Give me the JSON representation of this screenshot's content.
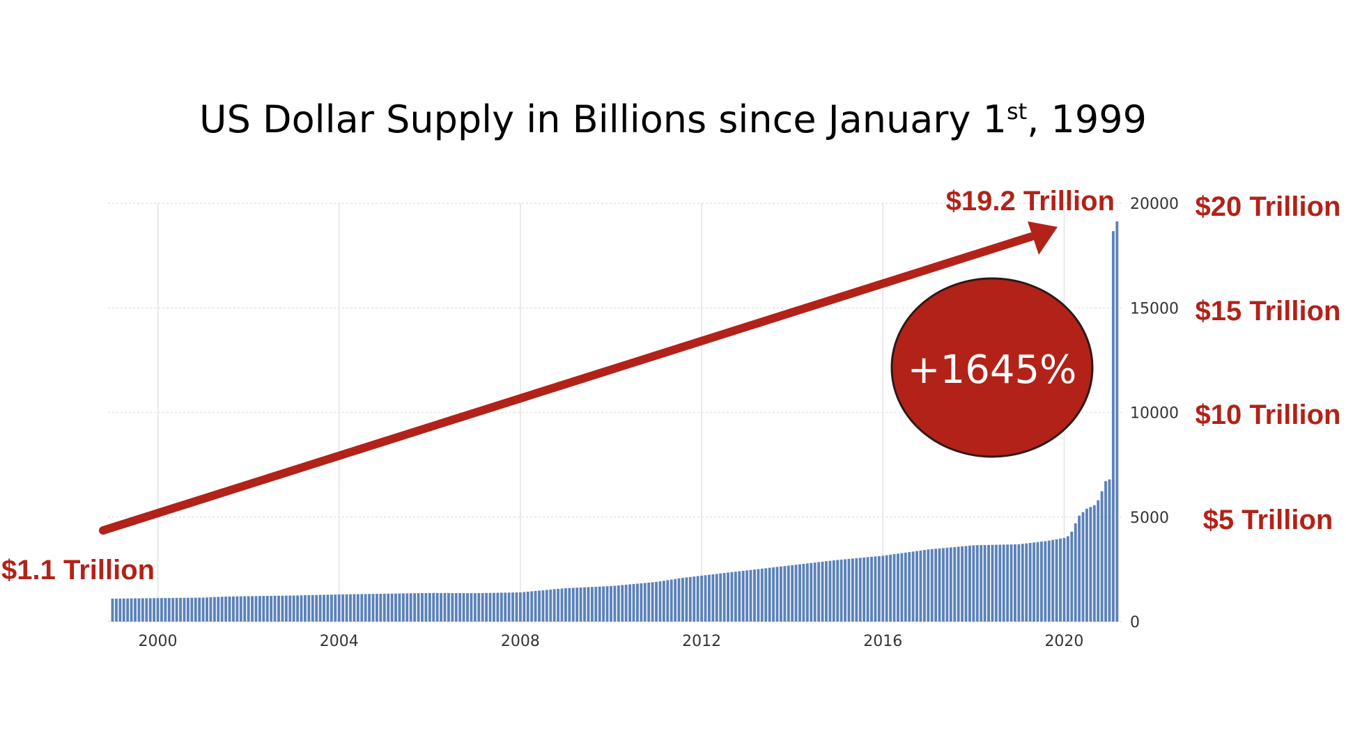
{
  "title": {
    "main": "US Dollar Supply in Billions since January 1",
    "sup": "st",
    "tail": ", 1999"
  },
  "colors": {
    "bar": "#5b82b9",
    "accent": "#b22218",
    "grid": "#e3e3e3"
  },
  "annotations": {
    "start_label": "$1.1 Trillion",
    "end_label": "$19.2 Trillion",
    "growth": "+1645%",
    "right_labels": [
      "$20 Trillion",
      "$15 Trillion",
      "$10 Trillion",
      "$5 Trillion"
    ]
  },
  "chart_data": {
    "type": "bar",
    "title": "US Dollar Supply in Billions since January 1st, 1999",
    "xlabel": "",
    "ylabel": "",
    "xlim": [
      1998.9,
      2021.3
    ],
    "ylim": [
      0,
      20000
    ],
    "x_ticks": [
      "2000",
      "2004",
      "2008",
      "2012",
      "2016",
      "2020"
    ],
    "y_ticks": [
      "0",
      "5000",
      "10000",
      "15000",
      "20000"
    ],
    "grid": true,
    "anchors": [
      [
        1999.0,
        1100
      ],
      [
        2001.0,
        1150
      ],
      [
        2001.5,
        1200
      ],
      [
        2003.0,
        1250
      ],
      [
        2004.0,
        1300
      ],
      [
        2006.0,
        1370
      ],
      [
        2007.0,
        1360
      ],
      [
        2008.0,
        1400
      ],
      [
        2009.0,
        1600
      ],
      [
        2010.0,
        1700
      ],
      [
        2011.0,
        1900
      ],
      [
        2011.6,
        2100
      ],
      [
        2012.0,
        2200
      ],
      [
        2013.0,
        2450
      ],
      [
        2014.0,
        2700
      ],
      [
        2015.0,
        2950
      ],
      [
        2016.0,
        3150
      ],
      [
        2017.0,
        3450
      ],
      [
        2018.0,
        3650
      ],
      [
        2019.0,
        3700
      ],
      [
        2019.6,
        3850
      ],
      [
        2020.0,
        4000
      ],
      [
        2020.1,
        4100
      ],
      [
        2020.2,
        4400
      ],
      [
        2020.3,
        5000
      ],
      [
        2020.4,
        5200
      ],
      [
        2020.5,
        5400
      ],
      [
        2020.6,
        5500
      ],
      [
        2020.7,
        5600
      ],
      [
        2020.8,
        6000
      ],
      [
        2020.9,
        6700
      ],
      [
        2021.0,
        6800
      ],
      [
        2021.05,
        18400
      ],
      [
        2021.1,
        18800
      ],
      [
        2021.15,
        19100
      ],
      [
        2021.2,
        19200
      ]
    ]
  }
}
